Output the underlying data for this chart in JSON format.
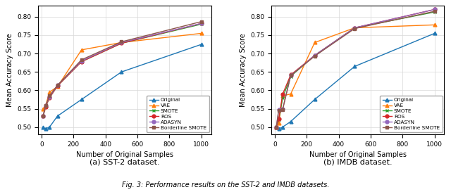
{
  "x": [
    10,
    25,
    50,
    100,
    250,
    500,
    1000
  ],
  "sst2": {
    "Original": [
      0.5,
      0.495,
      0.5,
      0.53,
      0.575,
      0.65,
      0.725
    ],
    "VAE": [
      0.55,
      0.558,
      0.595,
      0.61,
      0.71,
      0.73,
      0.755
    ],
    "SMOTE": [
      0.53,
      0.555,
      0.58,
      0.612,
      0.678,
      0.728,
      0.78
    ],
    "ROS": [
      0.53,
      0.555,
      0.58,
      0.612,
      0.678,
      0.728,
      0.782
    ],
    "ADASYN": [
      0.53,
      0.558,
      0.582,
      0.614,
      0.68,
      0.73,
      0.782
    ],
    "Borderline SMOTE": [
      0.53,
      0.558,
      0.585,
      0.614,
      0.683,
      0.732,
      0.787
    ]
  },
  "imdb": {
    "Original": [
      0.5,
      0.495,
      0.5,
      0.515,
      0.575,
      0.665,
      0.755
    ],
    "VAE": [
      0.5,
      0.51,
      0.585,
      0.59,
      0.73,
      0.77,
      0.778
    ],
    "SMOTE": [
      0.5,
      0.52,
      0.58,
      0.638,
      0.695,
      0.77,
      0.813
    ],
    "ROS": [
      0.5,
      0.522,
      0.59,
      0.642,
      0.695,
      0.77,
      0.82
    ],
    "ADASYN": [
      0.5,
      0.548,
      0.55,
      0.64,
      0.695,
      0.77,
      0.82
    ],
    "Borderline SMOTE": [
      0.5,
      0.545,
      0.548,
      0.64,
      0.693,
      0.768,
      0.815
    ]
  },
  "colors": {
    "Original": "#1f77b4",
    "VAE": "#ff7f0e",
    "SMOTE": "#2ca02c",
    "ROS": "#d62728",
    "ADASYN": "#9467bd",
    "Borderline SMOTE": "#8c564b"
  },
  "markers": {
    "Original": "^",
    "VAE": "^",
    "SMOTE": "x",
    "ROS": "o",
    "ADASYN": "o",
    "Borderline SMOTE": "s"
  },
  "ylabel": "Mean Accuracy Score",
  "xlabel": "Number of Original Samples",
  "caption_a": "(a) SST-2 dataset.",
  "caption_b": "(b) IMDB dataset.",
  "fig_caption": "Fig. 3: Performance results on the SST-2 and IMDB datasets.",
  "ylim": [
    0.48,
    0.83
  ],
  "yticks": [
    0.5,
    0.55,
    0.6,
    0.65,
    0.7,
    0.75,
    0.8
  ],
  "xticks": [
    0,
    200,
    400,
    600,
    800,
    1000
  ],
  "xlim": [
    -20,
    1060
  ]
}
